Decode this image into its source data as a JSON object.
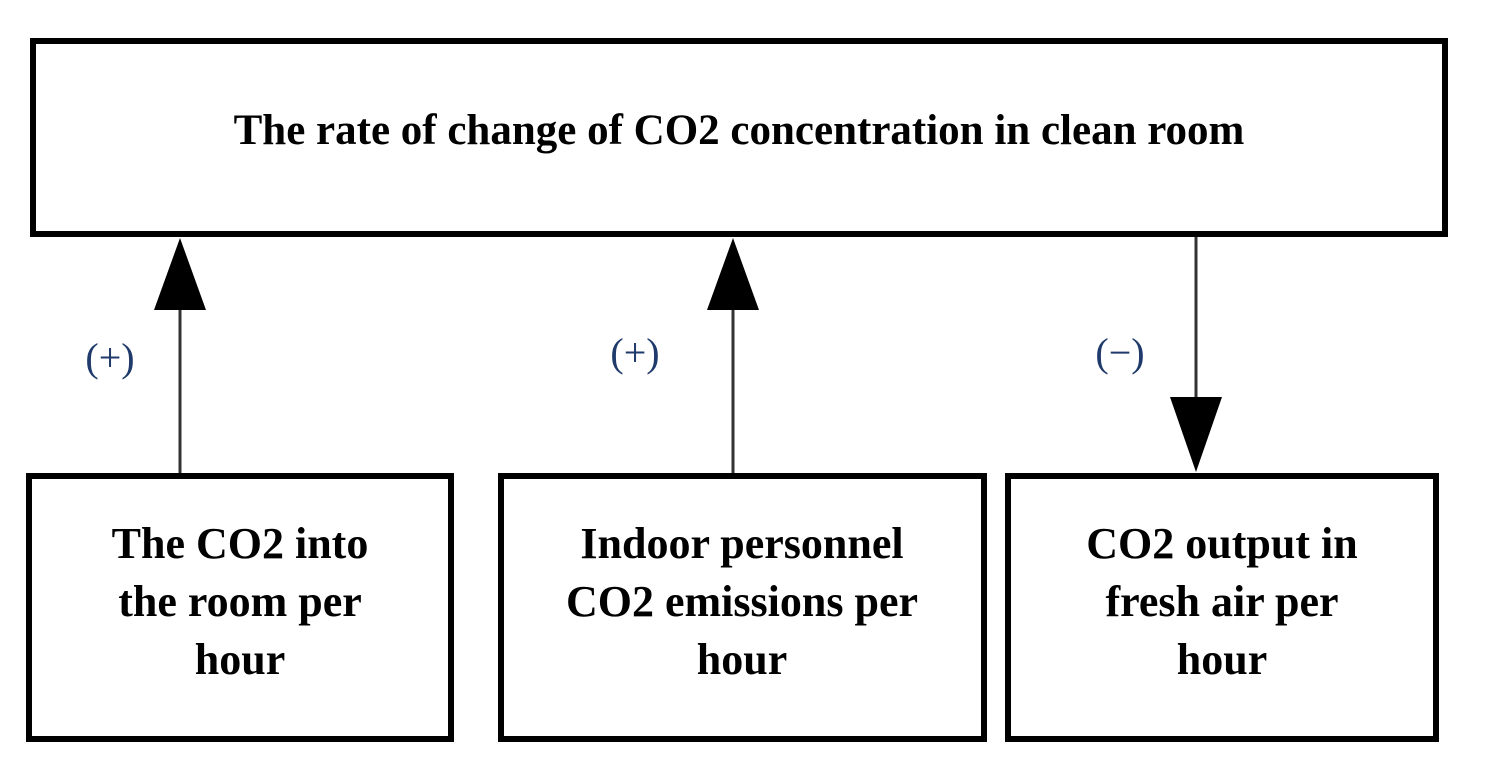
{
  "nodes": [
    {
      "lines": [
        "The rate of change of CO2 concentration in clean room"
      ]
    },
    {
      "lines": [
        "The CO2 into",
        "the room per",
        "hour"
      ]
    },
    {
      "lines": [
        "Indoor personnel",
        "CO2 emissions per",
        "hour"
      ]
    },
    {
      "lines": [
        "CO2 output in",
        "fresh air per",
        "hour"
      ]
    }
  ],
  "edges": [
    {
      "label": "(+)"
    },
    {
      "label": "(+)"
    },
    {
      "label": "(−)"
    }
  ]
}
